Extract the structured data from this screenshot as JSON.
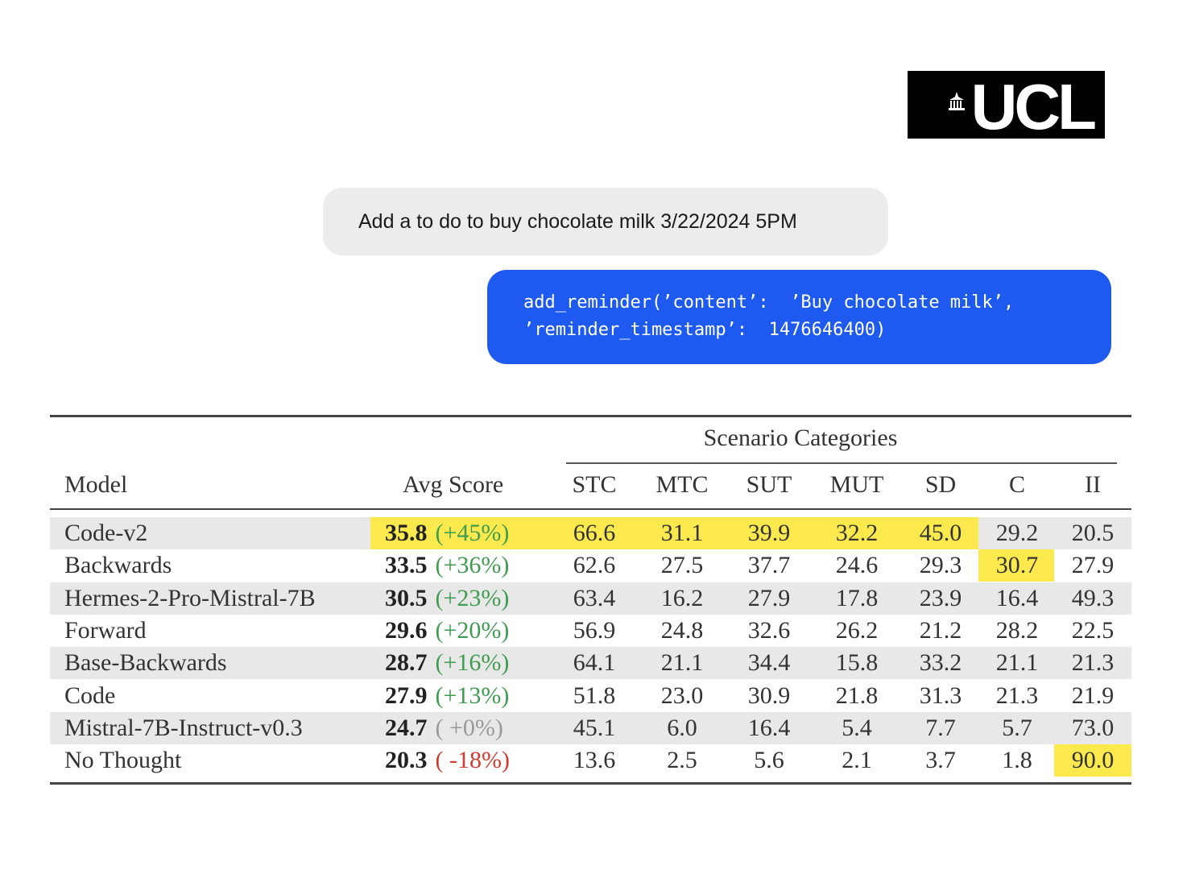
{
  "logo": {
    "text": "UCL"
  },
  "chat": {
    "user_message": "Add a to do to buy chocolate milk 3/22/2024 5PM",
    "assistant_line1": "add_reminder(’content’:  ’Buy chocolate milk’,",
    "assistant_line2": "’reminder_timestamp’:  1476646400)"
  },
  "table": {
    "group_header": "Scenario Categories",
    "headers": {
      "model": "Model",
      "avg": "Avg Score",
      "cols": [
        "STC",
        "MTC",
        "SUT",
        "MUT",
        "SD",
        "C",
        "II"
      ]
    },
    "rows": [
      {
        "model": "Code-v2",
        "avg": "35.8",
        "delta": "(+45%)",
        "delta_kind": "pos",
        "vals": [
          "66.6",
          "31.1",
          "39.9",
          "32.2",
          "45.0",
          "29.2",
          "20.5"
        ],
        "highlight": [
          "avg",
          "STC",
          "MTC",
          "SUT",
          "MUT",
          "SD"
        ]
      },
      {
        "model": "Backwards",
        "avg": "33.5",
        "delta": "(+36%)",
        "delta_kind": "pos",
        "vals": [
          "62.6",
          "27.5",
          "37.7",
          "24.6",
          "29.3",
          "30.7",
          "27.9"
        ],
        "highlight": [
          "C"
        ]
      },
      {
        "model": "Hermes-2-Pro-Mistral-7B",
        "avg": "30.5",
        "delta": "(+23%)",
        "delta_kind": "pos",
        "vals": [
          "63.4",
          "16.2",
          "27.9",
          "17.8",
          "23.9",
          "16.4",
          "49.3"
        ],
        "highlight": []
      },
      {
        "model": "Forward",
        "avg": "29.6",
        "delta": "(+20%)",
        "delta_kind": "pos",
        "vals": [
          "56.9",
          "24.8",
          "32.6",
          "26.2",
          "21.2",
          "28.2",
          "22.5"
        ],
        "highlight": []
      },
      {
        "model": "Base-Backwards",
        "avg": "28.7",
        "delta": "(+16%)",
        "delta_kind": "pos",
        "vals": [
          "64.1",
          "21.1",
          "34.4",
          "15.8",
          "33.2",
          "21.1",
          "21.3"
        ],
        "highlight": []
      },
      {
        "model": "Code",
        "avg": "27.9",
        "delta": "(+13%)",
        "delta_kind": "pos",
        "vals": [
          "51.8",
          "23.0",
          "30.9",
          "21.8",
          "31.3",
          "21.3",
          "21.9"
        ],
        "highlight": []
      },
      {
        "model": "Mistral-7B-Instruct-v0.3",
        "avg": "24.7",
        "delta": "( +0%)",
        "delta_kind": "zero",
        "vals": [
          "45.1",
          "6.0",
          "16.4",
          "5.4",
          "7.7",
          "5.7",
          "73.0"
        ],
        "highlight": []
      },
      {
        "model": "No Thought",
        "avg": "20.3",
        "delta": "( -18%)",
        "delta_kind": "neg",
        "vals": [
          "13.6",
          "2.5",
          "5.6",
          "2.1",
          "3.7",
          "1.8",
          "90.0"
        ],
        "highlight": [
          "II"
        ]
      }
    ]
  },
  "colors": {
    "bubble_blue": "#1f5af0",
    "bubble_gray": "#ececec",
    "highlight": "#fbe94e",
    "positive": "#3f9c50",
    "negative": "#d33b2e"
  }
}
